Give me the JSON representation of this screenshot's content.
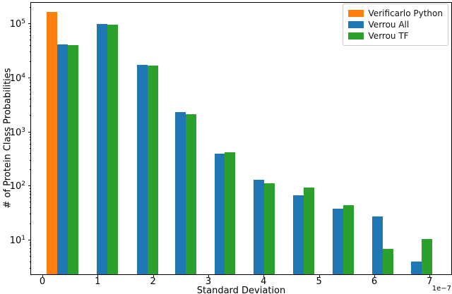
{
  "chart_data": {
    "type": "bar",
    "title": "",
    "xlabel": "Standard Deviation",
    "ylabel": "# of Protein Class Probabilities",
    "x_offset_text": "1e−7",
    "x_unit_multiplier": 1e-07,
    "y_scale": "log10",
    "grid": false,
    "legend_position": "upper right",
    "x_ticks": [
      0,
      1,
      2,
      3,
      4,
      5,
      6,
      7
    ],
    "y_tick_exponents": [
      1,
      2,
      3,
      4,
      5
    ],
    "xlim": [
      -0.35,
      7.42
    ],
    "ylim": [
      2.3,
      246000
    ],
    "bin_left_edges": [
      0.08,
      0.79,
      1.52,
      2.21,
      2.92,
      3.63,
      4.34,
      5.06,
      5.77,
      6.48
    ],
    "bar_slot_width": 0.19,
    "series": [
      {
        "name": "Verificarlo Python",
        "color": "#ff7f0e",
        "values": [
          162000,
          null,
          null,
          null,
          null,
          null,
          null,
          null,
          null,
          null
        ]
      },
      {
        "name": "Verrou All",
        "color": "#1f77b4",
        "values": [
          41000,
          98000,
          17200,
          2300,
          390,
          130,
          66,
          37,
          27,
          3.9
        ]
      },
      {
        "name": "Verrou TF",
        "color": "#2ca02c",
        "values": [
          39500,
          95000,
          16400,
          2070,
          415,
          112,
          91,
          44,
          6.7,
          10.3
        ]
      }
    ]
  }
}
